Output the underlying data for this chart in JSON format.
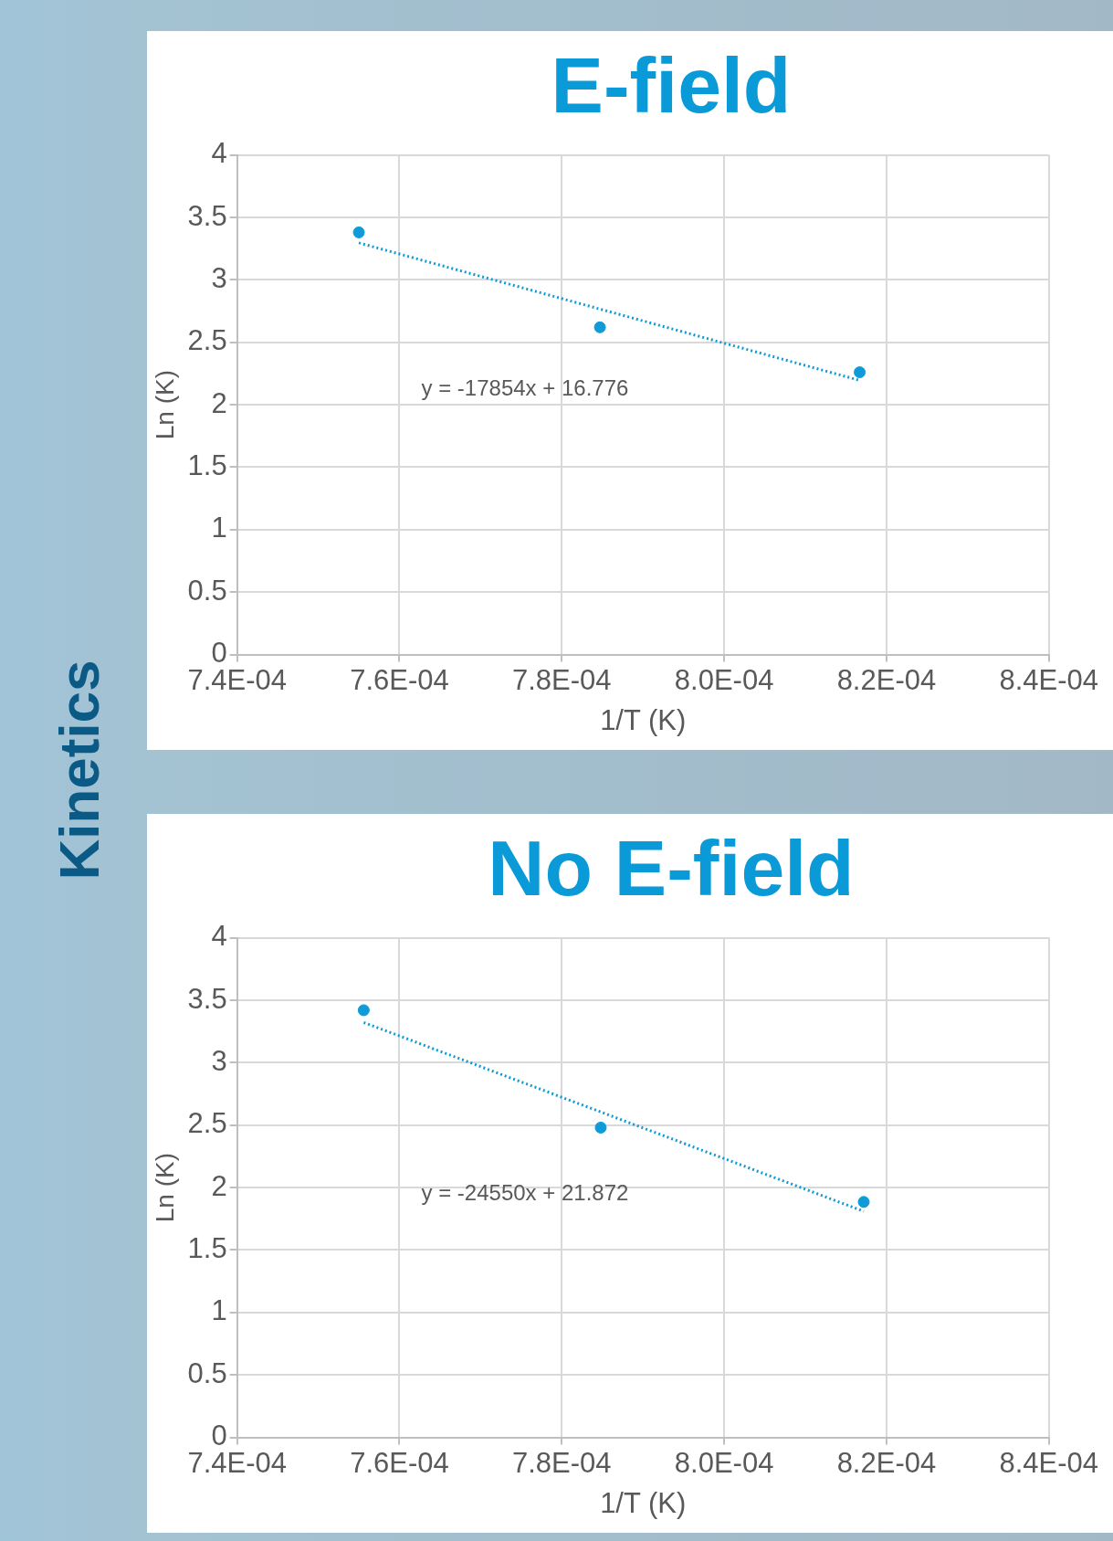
{
  "chart_data": [
    {
      "type": "scatter",
      "title": "E-field",
      "xlabel": "1/T (K)",
      "ylabel": "Ln (K)",
      "xlim": [
        0.00074,
        0.00084
      ],
      "xticks": [
        {
          "value": 0.00074,
          "label": "7.4E-04"
        },
        {
          "value": 0.00076,
          "label": "7.6E-04"
        },
        {
          "value": 0.00078,
          "label": "7.8E-04"
        },
        {
          "value": 0.0008,
          "label": "8.0E-04"
        },
        {
          "value": 0.00082,
          "label": "8.2E-04"
        },
        {
          "value": 0.00084,
          "label": "8.4E-04"
        }
      ],
      "ylim": [
        0,
        4
      ],
      "yticks": [
        0,
        0.5,
        1,
        1.5,
        2,
        2.5,
        3,
        3.5,
        4
      ],
      "grid": true,
      "legend": false,
      "series": [
        {
          "type": "scatter",
          "color": "#0f9bd7",
          "marker": "circle",
          "x": [
            0.000755,
            0.0007847,
            0.0008167
          ],
          "values": [
            3.38,
            2.62,
            2.26
          ]
        },
        {
          "type": "line",
          "color": "#0f9bd7",
          "marker": "none",
          "line_style": "dotted",
          "x": [
            0.000755,
            0.0008167
          ],
          "values": [
            3.296,
            2.195
          ]
        }
      ],
      "annotations": [
        "y = -17854x + 16.776",
        "Kinetics"
      ]
    },
    {
      "type": "scatter",
      "title": "No E-field",
      "xlabel": "1/T (K)",
      "ylabel": "Ln (K)",
      "xlim": [
        0.00074,
        0.00084
      ],
      "xticks": [
        {
          "value": 0.00074,
          "label": "7.4E-04"
        },
        {
          "value": 0.00076,
          "label": "7.6E-04"
        },
        {
          "value": 0.00078,
          "label": "7.8E-04"
        },
        {
          "value": 0.0008,
          "label": "8.0E-04"
        },
        {
          "value": 0.00082,
          "label": "8.2E-04"
        },
        {
          "value": 0.00084,
          "label": "8.4E-04"
        }
      ],
      "ylim": [
        0,
        4
      ],
      "yticks": [
        0,
        0.5,
        1,
        1.5,
        2,
        2.5,
        3,
        3.5,
        4
      ],
      "grid": true,
      "legend": false,
      "series": [
        {
          "type": "scatter",
          "color": "#0f9bd7",
          "marker": "circle",
          "x": [
            0.0007556,
            0.0007848,
            0.0008172
          ],
          "values": [
            3.42,
            2.48,
            1.885
          ]
        },
        {
          "type": "line",
          "color": "#0f9bd7",
          "marker": "none",
          "line_style": "dotted",
          "x": [
            0.0007556,
            0.0008172
          ],
          "values": [
            3.322,
            1.81
          ]
        }
      ],
      "annotations": [
        "y = -24550x + 21.872"
      ]
    }
  ]
}
